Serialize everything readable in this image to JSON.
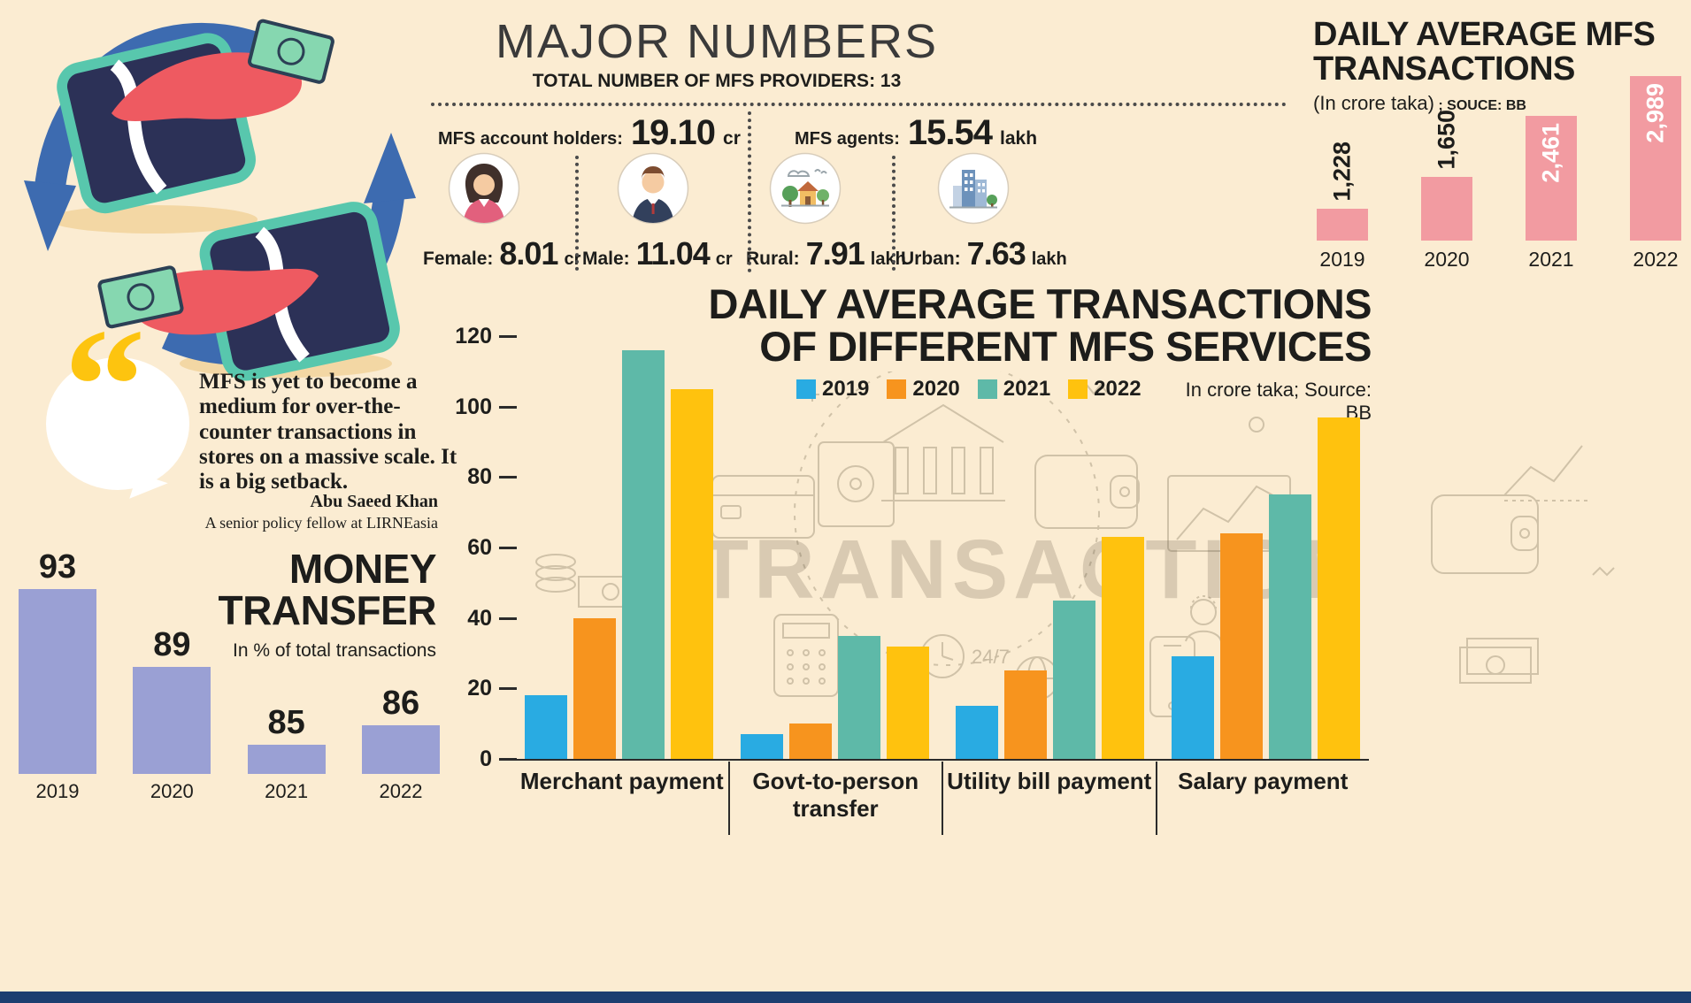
{
  "meta": {
    "background": "#fbecd2",
    "bottom_strip_color": "#1c3e70"
  },
  "major_numbers": {
    "title": "MAJOR NUMBERS",
    "subtitle": "TOTAL NUMBER OF MFS PROVIDERS: 13",
    "account_holders": {
      "label": "MFS account holders:",
      "value": "19.10",
      "unit": "cr",
      "female": {
        "label": "Female:",
        "value": "8.01",
        "unit": "cr"
      },
      "male": {
        "label": "Male:",
        "value": "11.04",
        "unit": "cr"
      }
    },
    "agents": {
      "label": "MFS agents:",
      "value": "15.54",
      "unit": "lakh",
      "rural": {
        "label": "Rural:",
        "value": "7.91",
        "unit": "lakh"
      },
      "urban": {
        "label": "Urban:",
        "value": "7.63",
        "unit": "lakh"
      }
    }
  },
  "daily_mfs": {
    "title_line1": "DAILY AVERAGE MFS",
    "title_line2": "TRANSACTIONS",
    "subtitle": "(In crore taka)",
    "source": " ; SOUCE: BB"
  },
  "quote": {
    "mark": "“",
    "text": "MFS is yet to become a medium for over-the-counter transactions in stores on a massive scale. It is a big setback.",
    "name": "Abu Saeed Khan",
    "role": "A senior policy fellow at LIRNEasia"
  },
  "money_transfer": {
    "title_line1": "MONEY",
    "title_line2": "TRANSFER",
    "subtitle": "In % of total transactions"
  },
  "services": {
    "title_line1": "DAILY AVERAGE TRANSACTIONS",
    "title_line2": "OF DIFFERENT MFS SERVICES",
    "note": "In crore taka; Source: BB",
    "doodle_clock_text": "24/7"
  },
  "chart_data": [
    {
      "id": "daily_mfs_transactions",
      "type": "bar",
      "title": "DAILY AVERAGE MFS TRANSACTIONS",
      "subtitle": "(In crore taka)",
      "source": "SOUCE: BB",
      "categories": [
        "2019",
        "2020",
        "2021",
        "2022"
      ],
      "values": [
        1228,
        1650,
        2461,
        2989
      ],
      "value_labels": [
        "1,228",
        "1,650",
        "2,461",
        "2,989"
      ],
      "label_inside": [
        false,
        false,
        true,
        true
      ],
      "bar_color": "#f29ba1",
      "ylim": [
        800,
        2989
      ],
      "legend_position": "none"
    },
    {
      "id": "money_transfer",
      "type": "bar",
      "title": "MONEY TRANSFER",
      "subtitle": "In % of total transactions",
      "categories": [
        "2019",
        "2020",
        "2021",
        "2022"
      ],
      "values": [
        93,
        89,
        85,
        86
      ],
      "value_labels": [
        "93",
        "89",
        "85",
        "86"
      ],
      "bar_color": "#9aa0d4",
      "ylim": [
        83.5,
        93
      ],
      "legend_position": "none"
    },
    {
      "id": "services",
      "type": "grouped_bar",
      "title": "DAILY AVERAGE TRANSACTIONS OF DIFFERENT MFS SERVICES",
      "note": "In crore taka; Source: BB",
      "watermark": "TRANSACTION",
      "categories": [
        "Merchant payment",
        "Govt-to-person transfer",
        "Utility bill payment",
        "Salary payment"
      ],
      "series": [
        {
          "name": "2019",
          "color": "#29abe2",
          "values": [
            18,
            7,
            15,
            29
          ]
        },
        {
          "name": "2020",
          "color": "#f7941e",
          "values": [
            40,
            10,
            25,
            64
          ]
        },
        {
          "name": "2021",
          "color": "#5eb9a8",
          "values": [
            116,
            35,
            45,
            75
          ]
        },
        {
          "name": "2022",
          "color": "#ffc20e",
          "values": [
            105,
            32,
            63,
            97
          ]
        }
      ],
      "ylim": [
        0,
        120
      ],
      "yticks": [
        0,
        20,
        40,
        60,
        80,
        100,
        120
      ],
      "grid": false,
      "legend_position": "top"
    }
  ]
}
